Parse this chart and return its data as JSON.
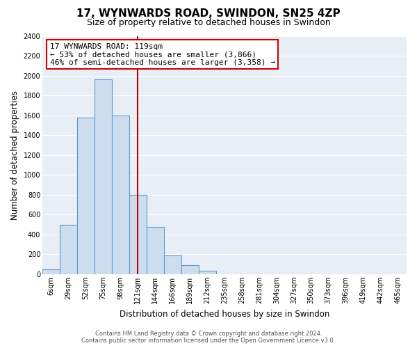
{
  "title": "17, WYNWARDS ROAD, SWINDON, SN25 4ZP",
  "subtitle": "Size of property relative to detached houses in Swindon",
  "xlabel": "Distribution of detached houses by size in Swindon",
  "ylabel": "Number of detached properties",
  "bar_labels": [
    "6sqm",
    "29sqm",
    "52sqm",
    "75sqm",
    "98sqm",
    "121sqm",
    "144sqm",
    "166sqm",
    "189sqm",
    "212sqm",
    "235sqm",
    "258sqm",
    "281sqm",
    "304sqm",
    "327sqm",
    "350sqm",
    "373sqm",
    "396sqm",
    "419sqm",
    "442sqm",
    "465sqm"
  ],
  "bar_heights": [
    50,
    500,
    1580,
    1960,
    1600,
    800,
    480,
    190,
    90,
    35,
    0,
    0,
    0,
    0,
    0,
    0,
    0,
    0,
    0,
    0,
    0
  ],
  "bar_color": "#ccddf0",
  "bar_edge_color": "#6699cc",
  "vline_index": 5,
  "vline_color": "#cc0000",
  "ylim": [
    0,
    2400
  ],
  "yticks": [
    0,
    200,
    400,
    600,
    800,
    1000,
    1200,
    1400,
    1600,
    1800,
    2000,
    2200,
    2400
  ],
  "annotation_title": "17 WYNWARDS ROAD: 119sqm",
  "annotation_line1": "← 53% of detached houses are smaller (3,866)",
  "annotation_line2": "46% of semi-detached houses are larger (3,358) →",
  "annotation_box_color": "#ffffff",
  "annotation_box_edge": "#cc0000",
  "footer1": "Contains HM Land Registry data © Crown copyright and database right 2024.",
  "footer2": "Contains public sector information licensed under the Open Government Licence v3.0.",
  "background_color": "#ffffff",
  "plot_bg_color": "#e8eef5",
  "grid_color": "#ffffff",
  "title_fontsize": 11,
  "subtitle_fontsize": 9,
  "axis_label_fontsize": 8.5,
  "tick_fontsize": 7,
  "footer_fontsize": 6,
  "annotation_fontsize": 8
}
